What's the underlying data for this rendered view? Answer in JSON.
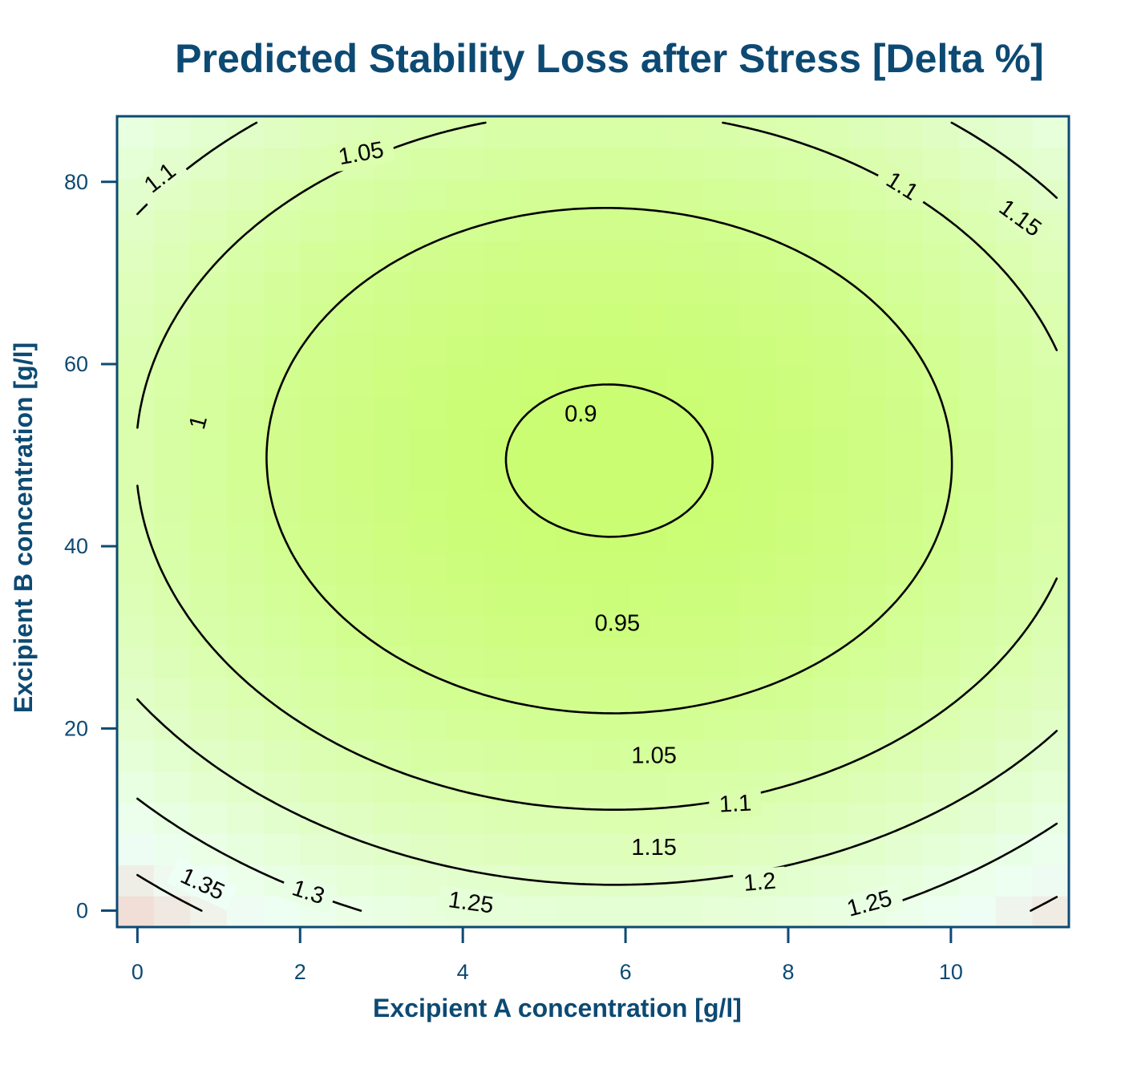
{
  "chart_data": {
    "type": "heatmap",
    "subtype": "contour",
    "title": "Predicted Stability Loss after Stress [Delta %]",
    "xlabel": "Excipient A concentration [g/l]",
    "ylabel": "Excipient B concentration [g/l]",
    "xlim": [
      -0.25,
      11.45
    ],
    "ylim": [
      -1.8,
      87.2
    ],
    "x_ticks": [
      0,
      2,
      4,
      6,
      8,
      10
    ],
    "y_ticks": [
      0,
      20,
      40,
      60,
      80
    ],
    "grid": false,
    "legend": "none",
    "surface_model": {
      "form": "quadratic",
      "minimum_at": {
        "x": 5.8,
        "y": 49.4
      },
      "minimum_value": 0.895,
      "coefficients": {
        "a": 0.0031,
        "b": 7.15e-05,
        "c": 1.06e-05
      }
    },
    "color_scale": {
      "low_value": 0.89,
      "low_color": "#c9fd6e",
      "mid_value": 1.13,
      "mid_color": "#eefff6",
      "high_value": 1.42,
      "high_color": "#ff3a3a"
    },
    "contour_levels": [
      0.9,
      0.95,
      1.0,
      1.05,
      1.1,
      1.15,
      1.2,
      1.25,
      1.3,
      1.35
    ],
    "contour_labels": [
      {
        "text": "0.9",
        "x": 5.45,
        "y": 54.5,
        "angle": 0
      },
      {
        "text": "0.95",
        "x": 5.9,
        "y": 31.5,
        "angle": 0
      },
      {
        "text": "1",
        "x": 0.75,
        "y": 53.6,
        "angle": -75
      },
      {
        "text": "1.05",
        "x": 2.75,
        "y": 83.1,
        "angle": -10
      },
      {
        "text": "1.05",
        "x": 6.35,
        "y": 17.0,
        "angle": 0
      },
      {
        "text": "1.1",
        "x": 0.28,
        "y": 80.4,
        "angle": -38
      },
      {
        "text": "1.1",
        "x": 9.4,
        "y": 79.5,
        "angle": 32
      },
      {
        "text": "1.1",
        "x": 7.35,
        "y": 11.7,
        "angle": -3
      },
      {
        "text": "1.15",
        "x": 10.85,
        "y": 76.0,
        "angle": 36
      },
      {
        "text": "1.15",
        "x": 6.35,
        "y": 6.9,
        "angle": 0
      },
      {
        "text": "1.2",
        "x": 7.65,
        "y": 3.1,
        "angle": -5
      },
      {
        "text": "1.25",
        "x": 4.1,
        "y": 0.85,
        "angle": 8
      },
      {
        "text": "1.25",
        "x": 9.0,
        "y": 0.75,
        "angle": -15
      },
      {
        "text": "1.3",
        "x": 2.1,
        "y": 2.0,
        "angle": 18
      },
      {
        "text": "1.35",
        "x": 0.8,
        "y": 2.9,
        "angle": 25
      }
    ]
  }
}
